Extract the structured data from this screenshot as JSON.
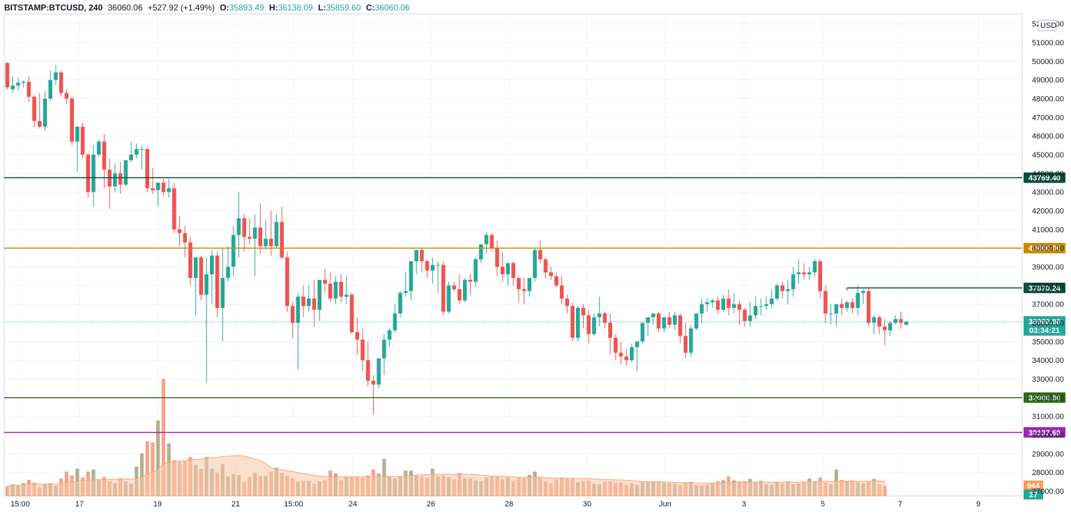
{
  "header": {
    "symbol": "BITSTAMP:BTCUSD, 240",
    "price": "36060.06",
    "change": "+527.92 (+1.49%)",
    "open_label": "O:",
    "open": "35893.49",
    "high_label": "H:",
    "high": "36138.09",
    "low_label": "L:",
    "low": "35859.60",
    "close_label": "C:",
    "close": "36060.06"
  },
  "chart_data": {
    "type": "candlestick",
    "currency_label": "USD",
    "y_ticks": [
      27000,
      28000,
      29000,
      30000,
      31000,
      32000,
      33000,
      34000,
      35000,
      36000,
      37000,
      38000,
      39000,
      40000,
      41000,
      42000,
      43000,
      44000,
      45000,
      46000,
      47000,
      48000,
      49000,
      50000,
      51000,
      52000
    ],
    "x_ticks": [
      "15:00",
      "17",
      "19",
      "21",
      "15:00",
      "24",
      "26",
      "28",
      "30",
      "Jun",
      "3",
      "5",
      "7",
      "9"
    ],
    "horizontal_levels": [
      {
        "value": 43769.4,
        "label": "43769.40",
        "color": "#0b4d3c"
      },
      {
        "value": 40000.0,
        "label": "40000.00",
        "color": "#c98a00"
      },
      {
        "value": 37870.24,
        "label": "37870.24",
        "color": "#0b4d3c",
        "starts_at_candle": 156
      },
      {
        "value": 32000.0,
        "label": "32000.00",
        "color": "#2e6b14"
      },
      {
        "value": 30137.6,
        "label": "30137.60",
        "color": "#9c27b0"
      }
    ],
    "last_price": {
      "value": 36060.06,
      "label": "36060.06",
      "countdown": "03:34:21",
      "color": "#26a69a"
    },
    "volume_labels": [
      {
        "label": "944",
        "color": "#ff9a5c"
      },
      {
        "label": "27",
        "color": "#26a69a"
      }
    ],
    "colors": {
      "up": "#26a69a",
      "down": "#ef5350",
      "vol_up": "#b5ae90",
      "vol_down": "#f8a28a",
      "vol_ma": "#f7c7a6"
    },
    "candles": [
      [
        49900,
        49950,
        48600,
        48500
      ],
      [
        48500,
        49200,
        48700,
        48300
      ],
      [
        48700,
        49150,
        48850,
        48400
      ],
      [
        48850,
        48980,
        48900,
        48600
      ],
      [
        48900,
        49200,
        48100,
        47800
      ],
      [
        48100,
        48200,
        46800,
        46500
      ],
      [
        46800,
        48300,
        46500,
        46400
      ],
      [
        46500,
        48400,
        48000,
        46300
      ],
      [
        48000,
        49500,
        49000,
        47900
      ],
      [
        49000,
        49800,
        49400,
        48700
      ],
      [
        49400,
        49500,
        48300,
        48100
      ],
      [
        48300,
        48500,
        48000,
        47700
      ],
      [
        48000,
        48100,
        45700,
        45500
      ],
      [
        45700,
        46500,
        46500,
        44100
      ],
      [
        46500,
        46700,
        45000,
        44800
      ],
      [
        45000,
        45100,
        43000,
        42700
      ],
      [
        43000,
        45500,
        45000,
        42200
      ],
      [
        45000,
        45800,
        45700,
        44900
      ],
      [
        45700,
        46100,
        44200,
        43200
      ],
      [
        44200,
        44800,
        43300,
        42100
      ],
      [
        43300,
        44500,
        44000,
        43000
      ],
      [
        44000,
        44600,
        43400,
        42900
      ],
      [
        43400,
        44700,
        44700,
        43300
      ],
      [
        44700,
        45700,
        45000,
        44600
      ],
      [
        45000,
        45600,
        45300,
        44800
      ],
      [
        45300,
        45500,
        45300,
        44200
      ],
      [
        45300,
        45400,
        43200,
        43000
      ],
      [
        43200,
        44300,
        43100,
        42900
      ],
      [
        43100,
        43500,
        43500,
        42200
      ],
      [
        43500,
        43700,
        43000,
        42800
      ],
      [
        43000,
        43700,
        43200,
        42700
      ],
      [
        43200,
        43500,
        41000,
        40800
      ],
      [
        41000,
        41700,
        40800,
        40100
      ],
      [
        40800,
        41200,
        40300,
        39500
      ],
      [
        40300,
        40600,
        38400,
        38000
      ],
      [
        38400,
        39400,
        39500,
        36400
      ],
      [
        39500,
        39600,
        37500,
        37200
      ],
      [
        37500,
        39500,
        38600,
        32800
      ],
      [
        38600,
        39900,
        39600,
        37000
      ],
      [
        39600,
        39800,
        36800,
        36300
      ],
      [
        36800,
        40000,
        38400,
        35000
      ],
      [
        38400,
        40100,
        39000,
        38200
      ],
      [
        39000,
        41200,
        40700,
        38500
      ],
      [
        40700,
        43000,
        41600,
        39500
      ],
      [
        41600,
        41800,
        40600,
        39800
      ],
      [
        40600,
        41600,
        40500,
        40200
      ],
      [
        40500,
        41800,
        41100,
        38500
      ],
      [
        41100,
        42400,
        40100,
        39700
      ],
      [
        40100,
        41500,
        40500,
        39900
      ],
      [
        40500,
        42000,
        40100,
        39600
      ],
      [
        40100,
        41800,
        41400,
        40000
      ],
      [
        41400,
        42200,
        39500,
        39400
      ],
      [
        39500,
        39800,
        36900,
        36600
      ],
      [
        36900,
        37100,
        36000,
        35200
      ],
      [
        36000,
        37600,
        37400,
        33500
      ],
      [
        37400,
        38000,
        36900,
        36300
      ],
      [
        36900,
        38000,
        37300,
        36600
      ],
      [
        37300,
        38300,
        36700,
        35800
      ],
      [
        36700,
        38200,
        38300,
        36100
      ],
      [
        38300,
        38900,
        38100,
        37600
      ],
      [
        38100,
        38700,
        37300,
        37100
      ],
      [
        37300,
        38500,
        38200,
        37000
      ],
      [
        38200,
        38600,
        37400,
        37100
      ],
      [
        37400,
        38500,
        37500,
        37000
      ],
      [
        37500,
        37600,
        35500,
        35400
      ],
      [
        35500,
        36300,
        35100,
        34300
      ],
      [
        35100,
        35700,
        34000,
        33400
      ],
      [
        34000,
        35000,
        32900,
        32600
      ],
      [
        32900,
        33200,
        32700,
        31100
      ],
      [
        32700,
        33400,
        34100,
        32500
      ],
      [
        34100,
        35400,
        35100,
        33200
      ],
      [
        35100,
        35700,
        35600,
        34700
      ],
      [
        35600,
        37000,
        36500,
        35500
      ],
      [
        36500,
        37700,
        37600,
        36300
      ],
      [
        37600,
        38700,
        37700,
        37400
      ],
      [
        37700,
        39000,
        39300,
        37200
      ],
      [
        39300,
        39800,
        39900,
        38600
      ],
      [
        39900,
        40000,
        39300,
        38700
      ],
      [
        39300,
        39400,
        38800,
        38400
      ],
      [
        38800,
        39500,
        39100,
        38100
      ],
      [
        39100,
        39300,
        39100,
        37600
      ],
      [
        39100,
        39300,
        36600,
        36400
      ],
      [
        36600,
        38200,
        38000,
        36500
      ],
      [
        38000,
        38200,
        37800,
        37700
      ],
      [
        37800,
        38600,
        37200,
        37000
      ],
      [
        37200,
        38400,
        38300,
        37100
      ],
      [
        38300,
        38600,
        38200,
        37500
      ],
      [
        38200,
        39500,
        39400,
        37900
      ],
      [
        39400,
        40200,
        40200,
        39200
      ],
      [
        40200,
        40900,
        40700,
        39700
      ],
      [
        40700,
        40800,
        40000,
        39800
      ],
      [
        40000,
        40400,
        39000,
        38500
      ],
      [
        39000,
        39800,
        38600,
        38200
      ],
      [
        38600,
        38800,
        39200,
        38000
      ],
      [
        39200,
        39300,
        38400,
        38000
      ],
      [
        38400,
        38500,
        37800,
        37100
      ],
      [
        37800,
        38400,
        37700,
        37000
      ],
      [
        37700,
        38100,
        38400,
        37400
      ],
      [
        38400,
        40000,
        39900,
        38200
      ],
      [
        39900,
        40400,
        39400,
        39200
      ],
      [
        39400,
        39500,
        38700,
        38400
      ],
      [
        38700,
        39000,
        38500,
        38300
      ],
      [
        38500,
        38700,
        38000,
        37900
      ],
      [
        38000,
        38500,
        37300,
        37000
      ],
      [
        37300,
        37500,
        36900,
        36500
      ],
      [
        36900,
        37100,
        35200,
        35000
      ],
      [
        35200,
        36900,
        36800,
        35000
      ],
      [
        36800,
        37000,
        36400,
        35700
      ],
      [
        36400,
        36700,
        35400,
        34900
      ],
      [
        35400,
        36500,
        36300,
        35300
      ],
      [
        36300,
        37400,
        36500,
        35800
      ],
      [
        36500,
        36600,
        36000,
        35700
      ],
      [
        36000,
        36500,
        35200,
        34300
      ],
      [
        35200,
        35400,
        34400,
        34000
      ],
      [
        34400,
        35000,
        34200,
        33800
      ],
      [
        34200,
        34600,
        34000,
        33700
      ],
      [
        34000,
        34900,
        34700,
        33900
      ],
      [
        34700,
        35000,
        35000,
        33400
      ],
      [
        35000,
        35700,
        36000,
        34900
      ],
      [
        36000,
        36300,
        36300,
        35300
      ],
      [
        36300,
        36500,
        36500,
        35900
      ],
      [
        36500,
        36600,
        35700,
        35500
      ],
      [
        35700,
        36000,
        36300,
        35500
      ],
      [
        36300,
        36600,
        35900,
        35700
      ],
      [
        35900,
        36600,
        36400,
        35600
      ],
      [
        36400,
        36500,
        35300,
        34900
      ],
      [
        35300,
        36000,
        34400,
        34100
      ],
      [
        34400,
        35900,
        35700,
        34200
      ],
      [
        35700,
        36500,
        36500,
        35600
      ],
      [
        36500,
        37300,
        37000,
        36000
      ],
      [
        37000,
        37300,
        37100,
        36600
      ],
      [
        37100,
        37300,
        37200,
        36800
      ],
      [
        37200,
        37400,
        36700,
        36500
      ],
      [
        36700,
        37500,
        37300,
        36600
      ],
      [
        37300,
        37800,
        36800,
        36400
      ],
      [
        36800,
        37600,
        37000,
        36500
      ],
      [
        37000,
        37200,
        36700,
        35900
      ],
      [
        36700,
        36800,
        36100,
        35800
      ],
      [
        36100,
        37100,
        36400,
        35800
      ],
      [
        36400,
        37400,
        36900,
        36200
      ],
      [
        36900,
        37300,
        36900,
        36400
      ],
      [
        36900,
        37400,
        37000,
        36700
      ],
      [
        37000,
        37800,
        37300,
        36800
      ],
      [
        37300,
        38100,
        38000,
        37200
      ],
      [
        38000,
        38200,
        37700,
        37300
      ],
      [
        37700,
        38300,
        37800,
        37000
      ],
      [
        37800,
        39000,
        38600,
        37400
      ],
      [
        38600,
        39400,
        38700,
        38100
      ],
      [
        38700,
        39200,
        38600,
        38300
      ],
      [
        38600,
        39000,
        38700,
        38300
      ],
      [
        38700,
        39400,
        39300,
        38500
      ],
      [
        39300,
        39400,
        37700,
        37300
      ],
      [
        37700,
        38000,
        36500,
        36000
      ],
      [
        36500,
        37000,
        36500,
        35900
      ],
      [
        36500,
        36900,
        37000,
        35800
      ],
      [
        37000,
        37300,
        36800,
        36400
      ],
      [
        36800,
        37200,
        37100,
        36600
      ],
      [
        37100,
        37300,
        36800,
        36500
      ],
      [
        36800,
        38000,
        37600,
        36400
      ],
      [
        37600,
        37800,
        37700,
        37000
      ],
      [
        37700,
        37900,
        36000,
        35800
      ],
      [
        36000,
        36400,
        36300,
        35400
      ],
      [
        36300,
        36400,
        35800,
        35400
      ],
      [
        35800,
        36200,
        35600,
        34800
      ],
      [
        35600,
        36100,
        36000,
        35300
      ],
      [
        36000,
        36400,
        36200,
        35900
      ],
      [
        36200,
        36600,
        36000,
        35700
      ],
      [
        35900,
        36100,
        36060,
        35860
      ]
    ],
    "volumes": [
      200,
      240,
      220,
      260,
      330,
      270,
      180,
      240,
      260,
      210,
      360,
      500,
      420,
      560,
      380,
      500,
      540,
      340,
      390,
      300,
      260,
      360,
      300,
      250,
      600,
      870,
      1120,
      1100,
      1550,
      2400,
      1080,
      730,
      700,
      710,
      800,
      640,
      560,
      800,
      560,
      480,
      650,
      400,
      450,
      430,
      280,
      390,
      470,
      410,
      410,
      500,
      580,
      470,
      410,
      360,
      290,
      310,
      310,
      250,
      300,
      320,
      520,
      460,
      320,
      400,
      400,
      400,
      370,
      420,
      540,
      460,
      760,
      400,
      360,
      400,
      520,
      520,
      420,
      400,
      370,
      560,
      400,
      420,
      380,
      340,
      470,
      360,
      360,
      320,
      300,
      380,
      400,
      400,
      340,
      380,
      300,
      380,
      360,
      430,
      500,
      380,
      300,
      260,
      340,
      380,
      360,
      350,
      280,
      300,
      320,
      250,
      240,
      290,
      300,
      270,
      280,
      230,
      260,
      230,
      300,
      280,
      300,
      300,
      270,
      260,
      250,
      220,
      280,
      290,
      220,
      220,
      230,
      270,
      300,
      320,
      400,
      320,
      300,
      300,
      350,
      280,
      310,
      240,
      230,
      290,
      260,
      300,
      240,
      260,
      290,
      360,
      300,
      380,
      280,
      240,
      540,
      330,
      310,
      320,
      280,
      260,
      300,
      350,
      240,
      200
    ]
  }
}
